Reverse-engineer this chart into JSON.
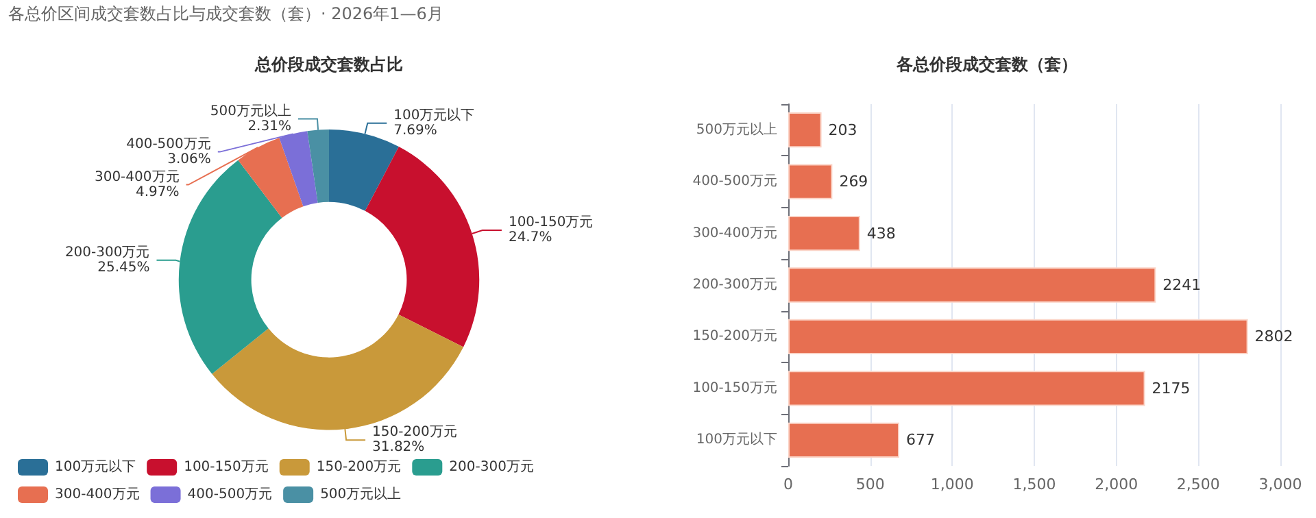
{
  "chart_data": [
    {
      "type": "donut",
      "title": "总价段成交套数占比",
      "annotations": [
        "各总价区间成交套数占比与成交套数（套）· 2026年1—6月"
      ],
      "categories": [
        "100万元以下",
        "100-150万元",
        "150-200万元",
        "200-300万元",
        "300-400万元",
        "400-500万元",
        "500万元以上"
      ],
      "values": [
        7.69,
        24.7,
        31.82,
        25.45,
        4.97,
        3.06,
        2.31
      ],
      "colors": [
        "#2a6f97",
        "#c8102e",
        "#c9993a",
        "#2a9d8f",
        "#e76f51",
        "#7b6fd8",
        "#4a90a4"
      ],
      "value_labels": [
        "7.69%",
        "24.7%",
        "31.82%",
        "25.45%",
        "4.97%",
        "3.06%",
        "2.31%"
      ],
      "legend": "bottom"
    },
    {
      "type": "bar",
      "orientation": "horizontal",
      "title": "各总价段成交套数（套）",
      "categories": [
        "500万元以上",
        "400-500万元",
        "300-400万元",
        "200-300万元",
        "150-200万元",
        "100-150万元",
        "100万元以下"
      ],
      "values": [
        203,
        269,
        438,
        2241,
        2802,
        2175,
        677
      ],
      "color": "#e76f51",
      "xlim": [
        0,
        3000
      ],
      "xticks": [
        0,
        500,
        {
          "value": 1000,
          "label": "1,000"
        },
        {
          "value": 1500,
          "label": "1,500"
        },
        {
          "value": 2000,
          "label": "2,000"
        },
        {
          "value": 2500,
          "label": "2,500"
        },
        {
          "value": 3000,
          "label": "3,000"
        }
      ],
      "grid": "x",
      "data_labels": true,
      "legend": false
    }
  ]
}
